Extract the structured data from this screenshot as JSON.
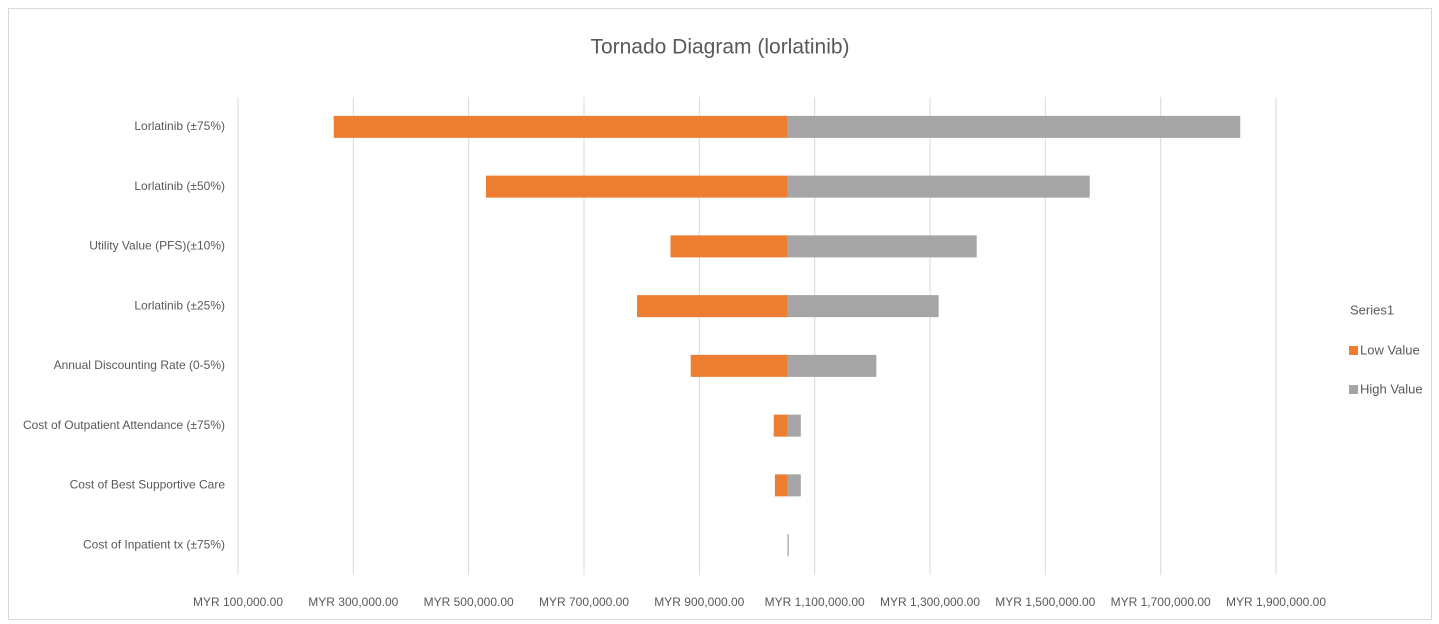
{
  "chart_data": {
    "type": "tornado",
    "title": "Tornado Diagram (lorlatinib)",
    "categories": [
      "Lorlatinib (±75%)",
      "Lorlatinib (±50%)",
      "Utility Value (PFS)(±10%)",
      "Lorlatinib (±25%)",
      "Annual Discounting Rate (0-5%)",
      "Cost of Outpatient Attendance (±75%)",
      "Cost of Best Supportive Care",
      "Cost of Inpatient tx (±75%)"
    ],
    "series": [
      {
        "name": "Low Value",
        "color": "#ed7d31",
        "values": [
          266000,
          530000,
          850000,
          792000,
          885000,
          1029000,
          1031000,
          1053000
        ]
      },
      {
        "name": "High Value",
        "color": "#a5a5a5",
        "values": [
          1838000,
          1577000,
          1381000,
          1315000,
          1207000,
          1076000,
          1076000,
          1055000
        ]
      }
    ],
    "x_origin": 1053000,
    "legend_title": "Series1",
    "legend": "right",
    "grid": true,
    "xlim": [
      100000,
      1900000
    ],
    "xticks": [
      {
        "value": 100000,
        "label": "MYR 100,000.00"
      },
      {
        "value": 300000,
        "label": "MYR 300,000.00"
      },
      {
        "value": 500000,
        "label": "MYR 500,000.00"
      },
      {
        "value": 700000,
        "label": "MYR 700,000.00"
      },
      {
        "value": 900000,
        "label": "MYR 900,000.00"
      },
      {
        "value": 1100000,
        "label": "MYR 1,100,000.00"
      },
      {
        "value": 1300000,
        "label": "MYR 1,300,000.00"
      },
      {
        "value": 1500000,
        "label": "MYR 1,500,000.00"
      },
      {
        "value": 1700000,
        "label": "MYR 1,700,000.00"
      },
      {
        "value": 1900000,
        "label": "MYR 1,900,000.00"
      }
    ]
  }
}
